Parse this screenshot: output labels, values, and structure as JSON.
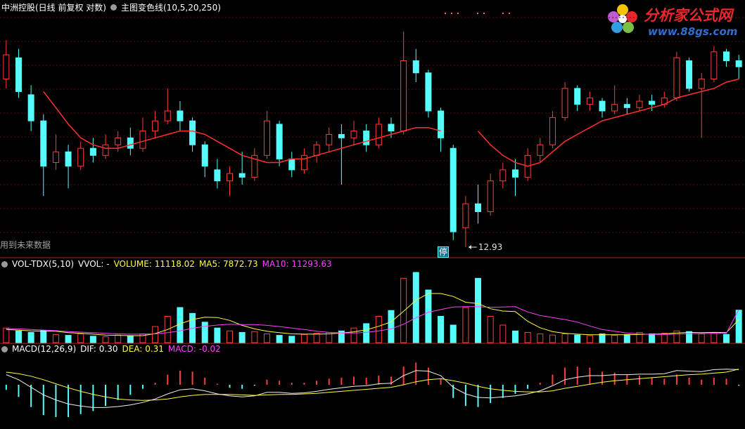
{
  "header": {
    "stock": "中洲控股(日线 前复权 对数)",
    "indicator": "主图变色线(10,5,20,250)",
    "note": "用到未来数据",
    "badge": "停",
    "logo_title": "分析家公式网",
    "logo_url": "www.88gs.com"
  },
  "chart_data": [
    {
      "type": "candlestick",
      "up_color": "#ff3c3c",
      "down_color": "#54fcfc",
      "open": [
        17.6,
        18.3,
        17.1,
        16.3,
        15.1,
        15.4,
        15.0,
        15.5,
        15.3,
        15.6,
        15.8,
        15.5,
        16.0,
        16.3,
        16.6,
        16.3,
        15.6,
        14.9,
        14.6,
        14.8,
        14.7,
        15.3,
        16.2,
        15.2,
        14.9,
        15.3,
        15.6,
        15.9,
        15.8,
        16.0,
        15.6,
        16.2,
        16.0,
        18.2,
        17.8,
        16.6,
        15.5,
        13.4,
        14.0,
        13.8,
        14.6,
        14.9,
        14.7,
        15.3,
        15.6,
        16.4,
        17.3,
        16.8,
        16.9,
        16.6,
        16.8,
        16.7,
        16.9,
        16.8,
        17.0,
        18.2,
        17.3,
        17.6,
        18.5,
        18.2
      ],
      "close": [
        18.4,
        17.2,
        16.3,
        15.0,
        15.4,
        15.0,
        15.5,
        15.3,
        15.6,
        15.8,
        15.5,
        16.0,
        16.3,
        16.6,
        16.3,
        15.6,
        15.0,
        14.6,
        14.8,
        14.7,
        15.3,
        16.3,
        15.2,
        14.9,
        15.3,
        15.6,
        15.9,
        15.8,
        16.0,
        15.6,
        16.2,
        16.0,
        18.2,
        17.8,
        16.6,
        15.8,
        13.3,
        14.0,
        13.8,
        14.6,
        14.9,
        14.7,
        15.3,
        15.6,
        16.4,
        17.3,
        16.8,
        17.0,
        16.6,
        16.8,
        16.7,
        16.9,
        16.8,
        17.0,
        18.3,
        17.3,
        17.6,
        18.5,
        18.2,
        18.0
      ],
      "high": [
        18.9,
        18.6,
        17.4,
        16.5,
        15.9,
        15.6,
        15.7,
        15.8,
        15.9,
        16.0,
        16.1,
        16.4,
        16.6,
        17.3,
        16.9,
        16.4,
        15.7,
        15.2,
        15.0,
        15.4,
        15.5,
        16.6,
        16.3,
        15.4,
        15.5,
        15.7,
        16.1,
        16.2,
        16.3,
        16.2,
        16.4,
        16.4,
        19.2,
        18.6,
        17.9,
        16.7,
        15.6,
        14.2,
        14.5,
        14.8,
        15.1,
        15.2,
        15.5,
        15.8,
        16.6,
        17.5,
        17.4,
        17.2,
        17.0,
        17.4,
        17.0,
        17.1,
        17.1,
        17.2,
        18.5,
        18.3,
        17.8,
        18.7,
        18.6,
        18.4
      ],
      "low": [
        17.3,
        17.0,
        16.0,
        14.2,
        14.9,
        14.4,
        14.9,
        15.1,
        15.2,
        15.4,
        15.3,
        15.4,
        15.8,
        16.2,
        16.0,
        15.4,
        14.7,
        14.4,
        14.2,
        14.5,
        14.6,
        15.2,
        15.0,
        14.7,
        14.8,
        15.1,
        15.4,
        14.5,
        15.6,
        15.4,
        15.5,
        15.8,
        15.9,
        17.5,
        16.4,
        15.4,
        13.1,
        12.93,
        13.5,
        13.7,
        14.4,
        14.2,
        14.6,
        15.1,
        15.5,
        16.3,
        16.6,
        16.6,
        16.4,
        16.5,
        16.5,
        16.6,
        16.6,
        16.7,
        16.9,
        17.2,
        15.8,
        17.5,
        18.0,
        17.6
      ],
      "line": {
        "color": "#ff3030",
        "values": [
          null,
          null,
          null,
          17.2,
          16.7,
          16.2,
          15.8,
          15.6,
          15.5,
          15.5,
          15.6,
          15.7,
          15.8,
          15.9,
          16.0,
          16.0,
          15.9,
          15.7,
          15.5,
          15.3,
          15.2,
          15.1,
          15.1,
          15.2,
          15.2,
          15.3,
          15.4,
          15.5,
          15.6,
          15.7,
          15.8,
          15.9,
          16.0,
          16.1,
          16.1,
          16.0,
          null,
          null,
          16.0,
          15.6,
          15.3,
          15.1,
          15.0,
          15.1,
          15.4,
          15.7,
          15.9,
          16.1,
          16.3,
          16.4,
          16.5,
          16.6,
          16.7,
          16.8,
          17.0,
          17.1,
          17.2,
          17.3,
          17.5,
          17.6
        ]
      }
    },
    {
      "type": "bar",
      "title": "VOL-TDX(5,10)",
      "subtitle": "VVOL: -",
      "series": [
        {
          "name": "VOLUME:",
          "color": "#ffff40",
          "values": [
            5000,
            4000,
            3500,
            4200,
            2800,
            2500,
            3000,
            2200,
            2000,
            2600,
            2400,
            3000,
            5500,
            9000,
            12000,
            10000,
            7000,
            5000,
            4000,
            3500,
            3800,
            3000,
            2500,
            2200,
            2800,
            3200,
            3500,
            4000,
            5000,
            6500,
            9000,
            11000,
            22000,
            24000,
            18000,
            9000,
            6000,
            12000,
            22000,
            9000,
            6000,
            4000,
            3500,
            3000,
            2600,
            3000,
            2600,
            2400,
            3000,
            2500,
            2800,
            3500,
            3000,
            3200,
            4000,
            3800,
            3000,
            3400,
            2800,
            11118.02
          ]
        },
        {
          "name": "MA5:",
          "color": "#ffff40",
          "values": [
            4500,
            4300,
            4000,
            3900,
            3900,
            3400,
            3200,
            2900,
            2600,
            2500,
            2400,
            2400,
            3100,
            4500,
            6400,
            7900,
            8700,
            8600,
            7600,
            5900,
            4700,
            3900,
            3400,
            3000,
            2900,
            2900,
            3000,
            3300,
            3700,
            4400,
            5600,
            7100,
            10700,
            14500,
            16800,
            16800,
            15800,
            13800,
            13400,
            11600,
            10800,
            10600,
            7300,
            5100,
            3800,
            3200,
            2900,
            2700,
            2700,
            2700,
            2700,
            2800,
            2900,
            3000,
            3300,
            3500,
            3400,
            3500,
            3400,
            7872.73
          ]
        },
        {
          "name": "MA10:",
          "color": "#ff40ff",
          "values": [
            4800,
            4700,
            4500,
            4300,
            4100,
            3800,
            3600,
            3400,
            3200,
            3000,
            2900,
            2900,
            3000,
            3400,
            4000,
            4900,
            5600,
            6000,
            6300,
            6200,
            6200,
            5900,
            5500,
            5000,
            4500,
            3900,
            3500,
            3300,
            3300,
            3500,
            4000,
            4700,
            6300,
            8500,
            10400,
            11300,
            12200,
            12300,
            12300,
            12100,
            12200,
            12300,
            10500,
            9300,
            8600,
            7900,
            7000,
            5700,
            4500,
            3900,
            3300,
            3000,
            2800,
            2800,
            2900,
            3100,
            3100,
            3200,
            3200,
            11293.63
          ]
        }
      ]
    },
    {
      "type": "macd",
      "title": "MACD(12,26,9)",
      "series": [
        {
          "name": "DIF:",
          "color": "#f0f0f0",
          "readout": "0.30",
          "values": [
            0.2,
            0.1,
            -0.05,
            -0.2,
            -0.3,
            -0.38,
            -0.42,
            -0.45,
            -0.45,
            -0.43,
            -0.4,
            -0.35,
            -0.28,
            -0.18,
            -0.1,
            -0.08,
            -0.12,
            -0.18,
            -0.22,
            -0.24,
            -0.22,
            -0.15,
            -0.15,
            -0.17,
            -0.16,
            -0.13,
            -0.09,
            -0.06,
            -0.03,
            -0.02,
            0.02,
            0.03,
            0.18,
            0.28,
            0.27,
            0.18,
            -0.05,
            -0.18,
            -0.25,
            -0.26,
            -0.24,
            -0.22,
            -0.18,
            -0.12,
            -0.02,
            0.1,
            0.15,
            0.18,
            0.18,
            0.2,
            0.2,
            0.21,
            0.21,
            0.22,
            0.28,
            0.27,
            0.26,
            0.3,
            0.31,
            0.3
          ]
        },
        {
          "name": "DEA:",
          "color": "#ffff40",
          "readout": "0.31",
          "values": [
            0.25,
            0.22,
            0.17,
            0.1,
            0.02,
            -0.06,
            -0.13,
            -0.19,
            -0.24,
            -0.28,
            -0.3,
            -0.31,
            -0.3,
            -0.28,
            -0.24,
            -0.21,
            -0.19,
            -0.19,
            -0.19,
            -0.2,
            -0.21,
            -0.2,
            -0.19,
            -0.19,
            -0.18,
            -0.17,
            -0.15,
            -0.13,
            -0.11,
            -0.09,
            -0.07,
            -0.05,
            0.0,
            0.06,
            0.1,
            0.12,
            0.08,
            0.03,
            -0.03,
            -0.08,
            -0.11,
            -0.13,
            -0.14,
            -0.14,
            -0.12,
            -0.07,
            -0.03,
            0.01,
            0.05,
            0.08,
            0.1,
            0.12,
            0.14,
            0.16,
            0.18,
            0.2,
            0.21,
            0.23,
            0.25,
            0.31
          ]
        },
        {
          "name": "MACD:",
          "color": "#ff40ff",
          "readout": "-0.02",
          "up_color": "#ff3c3c",
          "down_color": "#54fcfc",
          "values": [
            -0.1,
            -0.24,
            -0.44,
            -0.6,
            -0.64,
            -0.64,
            -0.58,
            -0.52,
            -0.42,
            -0.3,
            -0.2,
            -0.08,
            0.04,
            0.2,
            0.28,
            0.26,
            0.14,
            0.02,
            -0.06,
            -0.08,
            -0.02,
            0.1,
            0.08,
            0.04,
            0.04,
            0.08,
            0.12,
            0.14,
            0.16,
            0.14,
            0.18,
            0.16,
            0.36,
            0.44,
            0.34,
            0.12,
            -0.26,
            -0.42,
            -0.44,
            -0.36,
            -0.26,
            -0.18,
            -0.08,
            0.04,
            0.2,
            0.34,
            0.36,
            0.34,
            0.26,
            0.24,
            0.2,
            0.18,
            0.14,
            0.12,
            0.2,
            0.14,
            0.1,
            0.14,
            0.12,
            -0.02
          ]
        }
      ]
    }
  ]
}
